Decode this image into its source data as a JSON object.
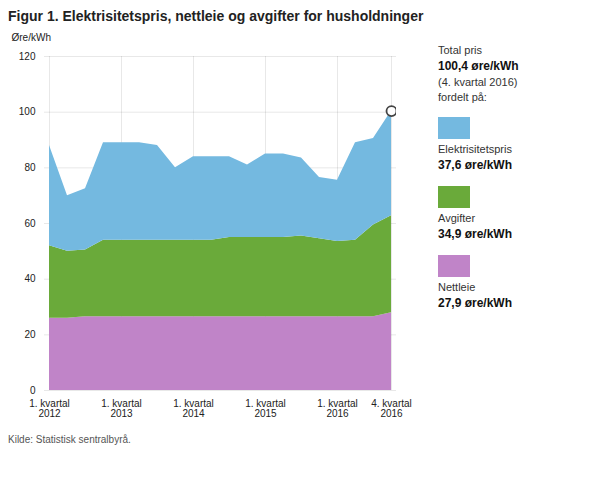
{
  "chart_data": {
    "type": "area",
    "stacked": true,
    "title": "Figur 1. Elektrisitetspris, nettleie og avgifter for husholdninger",
    "ylabel": "Øre/kWh",
    "caption": "Kilde: Statistisk sentralbyrå.",
    "categories": [
      "1. kvartal\n2012",
      null,
      null,
      null,
      "1. kvartal\n2013",
      null,
      null,
      null,
      "1. kvartal\n2014",
      null,
      null,
      null,
      "1. kvartal\n2015",
      null,
      null,
      null,
      "1. kvartal\n2016",
      null,
      null,
      "4. kvartal\n2016"
    ],
    "series": [
      {
        "name": "Nettleie",
        "color": "#c084c8",
        "legend_value": "27,9 øre/kWh",
        "values": [
          26,
          26,
          26.5,
          26.5,
          26.5,
          26.5,
          26.5,
          26.5,
          26.5,
          26.5,
          26.5,
          26.5,
          26.5,
          26.5,
          26.5,
          26.5,
          26.5,
          26.5,
          26.5,
          27.9
        ]
      },
      {
        "name": "Avgifter",
        "color": "#6aaa3a",
        "legend_value": "34,9 øre/kWh",
        "values": [
          26,
          24,
          24,
          27.5,
          27.5,
          27.5,
          27.5,
          27.5,
          27.5,
          27.5,
          28.5,
          28.5,
          28.5,
          28.5,
          29,
          28,
          27,
          27.5,
          33,
          34.9
        ]
      },
      {
        "name": "Elektrisitetspris",
        "color": "#74b9e0",
        "legend_value": "37,6 øre/kWh",
        "values": [
          36,
          20,
          22,
          35,
          35,
          35,
          34,
          26,
          30,
          30,
          29,
          26,
          30,
          30,
          28,
          22,
          22,
          35,
          31,
          37.6
        ]
      }
    ],
    "total_point": {
      "x": "4. kvartal\n2016",
      "y": 100.4
    },
    "annotations": [
      "Total pris",
      "100,4 øre/kWh",
      "(4. kvartal 2016)",
      "fordelt på:"
    ],
    "ylim": [
      0,
      120
    ],
    "yticks": [
      0,
      20,
      40,
      60,
      80,
      100,
      120
    ],
    "grid": true,
    "legend": "right"
  }
}
